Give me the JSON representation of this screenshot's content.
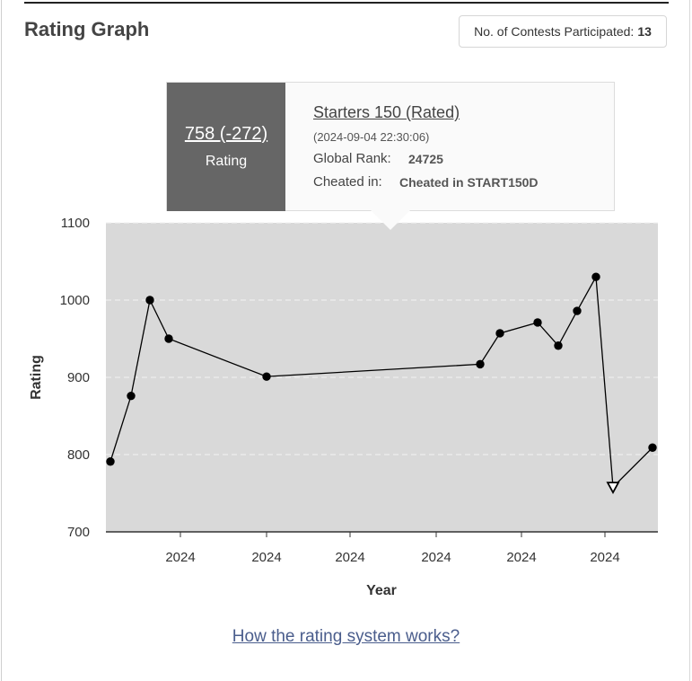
{
  "header": {
    "title": "Rating Graph",
    "contests_label": "No. of Contests Participated:",
    "contests_count": "13"
  },
  "tooltip": {
    "rating_value": "758 (-272)",
    "rating_label": "Rating",
    "contest_name": "Starters 150 (Rated)",
    "contest_date": "(2024-09-04 22:30:06)",
    "global_rank_label": "Global Rank:",
    "global_rank_value": "24725",
    "cheated_label": "Cheated in:",
    "cheated_value": "Cheated in START150D"
  },
  "chart_data": {
    "type": "line",
    "xlabel": "Year",
    "ylabel": "Rating",
    "ylim": [
      700,
      1100
    ],
    "yticks": [
      1100,
      1000,
      900,
      800,
      700
    ],
    "xtick_labels": [
      "2024",
      "2024",
      "2024",
      "2024",
      "2024",
      "2024"
    ],
    "grid": "horizontal dashed",
    "background_color": "#d9d9d9",
    "line_color": "#000000",
    "series": [
      {
        "values": [
          791,
          876,
          1000,
          950,
          901,
          917,
          957,
          971,
          941,
          986,
          1030,
          758,
          809
        ],
        "markers": [
          "dot",
          "dot",
          "dot",
          "dot",
          "dot",
          "dot",
          "dot",
          "dot",
          "dot",
          "dot",
          "dot",
          "triangle-down-open",
          "dot"
        ]
      }
    ]
  },
  "footer": {
    "help_link": "How the rating system works?"
  }
}
